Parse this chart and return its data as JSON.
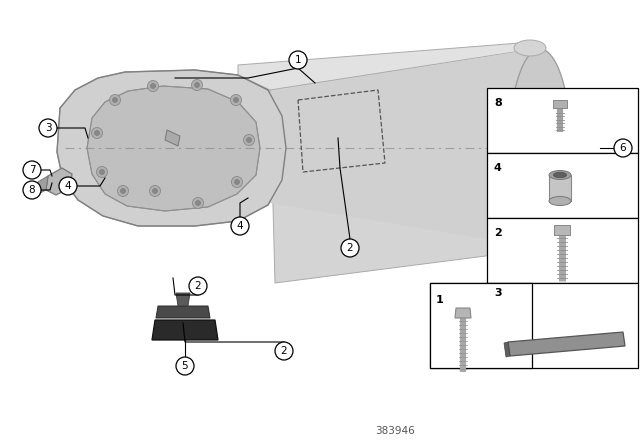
{
  "bg_color": "#ffffff",
  "diagram_num": "383946",
  "line_color": "#000000",
  "callout_color": "#000000",
  "transmission_fill": "#d8d8d8",
  "transmission_edge": "#aaaaaa",
  "dark_fill": "#333333",
  "plug_fill": "#444444"
}
